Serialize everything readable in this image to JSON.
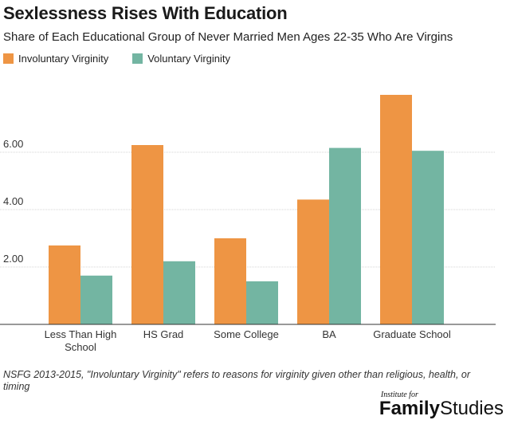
{
  "title": "Sexlessness Rises With Education",
  "subtitle": "Share of Each Educational Group of Never Married Men Ages 22-35 Who Are Virgins",
  "legend": {
    "involuntary": "Involuntary Virginity",
    "voluntary": "Voluntary Virginity"
  },
  "colors": {
    "involuntary": "#ee9544",
    "voluntary": "#73b5a2"
  },
  "footnote": "NSFG 2013-2015, \"Involuntary Virginity\" refers to reasons for virginity given other than religious, health, or timing",
  "logo": {
    "top": "Institute for",
    "word1": "Family",
    "word2": "Studies"
  },
  "chart_data": {
    "type": "bar",
    "categories": [
      [
        "Less Than High",
        "School"
      ],
      [
        "HS Grad"
      ],
      [
        "Some College"
      ],
      [
        "BA"
      ],
      [
        "Graduate School"
      ]
    ],
    "series": [
      {
        "name": "Involuntary Virginity",
        "values": [
          2.75,
          6.25,
          3.0,
          4.35,
          8.0
        ]
      },
      {
        "name": "Voluntary Virginity",
        "values": [
          1.7,
          2.2,
          1.5,
          6.15,
          6.05
        ]
      }
    ],
    "yticks": [
      2.0,
      4.0,
      6.0
    ],
    "ytick_labels": [
      "2.00",
      "4.00",
      "6.00"
    ],
    "ylim": [
      0,
      8
    ],
    "grid": true
  }
}
